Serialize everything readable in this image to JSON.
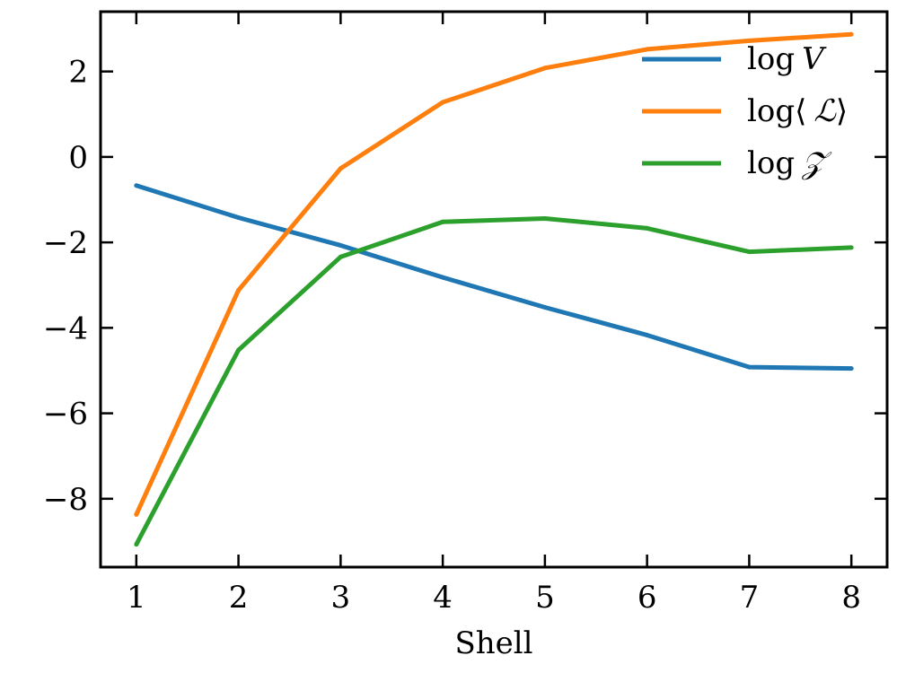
{
  "chart_data": {
    "type": "line",
    "x": [
      1,
      2,
      3,
      4,
      5,
      6,
      7,
      8
    ],
    "xlabel": "Shell",
    "ylabel": "",
    "xlim": [
      0.65,
      8.35
    ],
    "ylim": [
      -9.6,
      3.4
    ],
    "xticks": [
      1,
      2,
      3,
      4,
      5,
      6,
      7,
      8
    ],
    "yticks": [
      -8,
      -6,
      -4,
      -2,
      0,
      2
    ],
    "grid": false,
    "legend_position": "top-right",
    "series": [
      {
        "name": "log V",
        "legend_pre": "log",
        "legend_sym": "V",
        "legend_post": "",
        "color": "#1f77b4",
        "values": [
          -0.67,
          -1.42,
          -2.07,
          -2.82,
          -3.52,
          -4.17,
          -4.92,
          -4.95
        ]
      },
      {
        "name": "log⟨ℒ⟩",
        "legend_pre": "log⟨",
        "legend_sym": "ℒ",
        "legend_post": "⟩",
        "color": "#ff7f0e",
        "values": [
          -8.37,
          -3.12,
          -0.27,
          1.28,
          2.08,
          2.52,
          2.72,
          2.87
        ]
      },
      {
        "name": "log 𝒵",
        "legend_pre": "log",
        "legend_sym": "𝒵",
        "legend_post": "",
        "color": "#2ca02c",
        "values": [
          -9.07,
          -4.52,
          -2.34,
          -1.52,
          -1.44,
          -1.67,
          -2.22,
          -2.12
        ]
      }
    ]
  }
}
